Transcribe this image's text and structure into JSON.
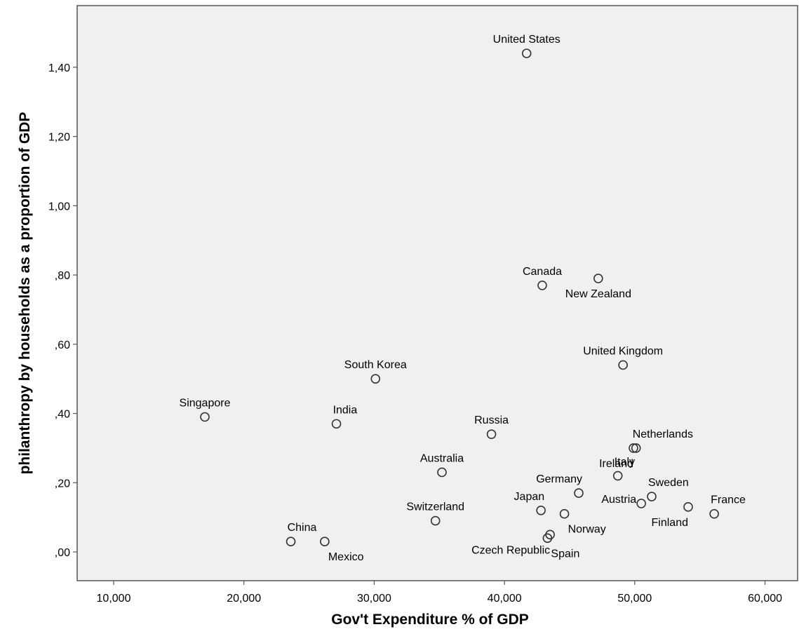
{
  "chart_data": {
    "type": "scatter",
    "title": "",
    "xlabel": "Gov't Expenditure % of GDP",
    "ylabel": "philanthropy by households as a proportion of GDP",
    "xlim": [
      7.2,
      62.5
    ],
    "ylim": [
      -0.083,
      1.578
    ],
    "x_ticks": [
      10,
      20,
      30,
      40,
      50,
      60
    ],
    "x_tick_labels": [
      "10,000",
      "20,000",
      "30,000",
      "40,000",
      "50,000",
      "60,000"
    ],
    "y_ticks": [
      0.0,
      0.2,
      0.4,
      0.6,
      0.8,
      1.0,
      1.2,
      1.4
    ],
    "y_tick_labels": [
      ",00",
      ",20",
      ",40",
      ",60",
      ",80",
      "1,00",
      "1,20",
      "1,40"
    ],
    "grid": false,
    "legend": "none",
    "colors": {
      "plot_background": "#f0f0f0",
      "marker_stroke": "#333333",
      "axis": "#555555"
    },
    "points": [
      {
        "label": "United States",
        "x": 41.7,
        "y": 1.44,
        "label_pos": "above"
      },
      {
        "label": "Canada",
        "x": 42.9,
        "y": 0.77,
        "label_pos": "above"
      },
      {
        "label": "New Zealand",
        "x": 47.2,
        "y": 0.79,
        "label_pos": "below"
      },
      {
        "label": "United Kingdom",
        "x": 49.1,
        "y": 0.54,
        "label_pos": "above"
      },
      {
        "label": "South Korea",
        "x": 30.1,
        "y": 0.5,
        "label_pos": "above"
      },
      {
        "label": "Singapore",
        "x": 17.0,
        "y": 0.39,
        "label_pos": "above"
      },
      {
        "label": "India",
        "x": 27.1,
        "y": 0.37,
        "label_pos": "above-right"
      },
      {
        "label": "Russia",
        "x": 39.0,
        "y": 0.34,
        "label_pos": "above"
      },
      {
        "label": "Netherlands",
        "x": 50.1,
        "y": 0.3,
        "label_pos": "above-right"
      },
      {
        "label": "Ireland",
        "x": 49.9,
        "y": 0.3,
        "label_pos": "below-left"
      },
      {
        "label": "Australia",
        "x": 35.2,
        "y": 0.23,
        "label_pos": "above"
      },
      {
        "label": "Italy",
        "x": 48.7,
        "y": 0.22,
        "label_pos": "above-right"
      },
      {
        "label": "Germany",
        "x": 45.7,
        "y": 0.17,
        "label_pos": "above-left"
      },
      {
        "label": "Austria",
        "x": 50.5,
        "y": 0.14,
        "label_pos": "left"
      },
      {
        "label": "Sweden",
        "x": 51.3,
        "y": 0.16,
        "label_pos": "above-right"
      },
      {
        "label": "Finland",
        "x": 54.1,
        "y": 0.13,
        "label_pos": "below-left"
      },
      {
        "label": "France",
        "x": 56.1,
        "y": 0.11,
        "label_pos": "above-right"
      },
      {
        "label": "Japan",
        "x": 42.8,
        "y": 0.12,
        "label_pos": "above-left"
      },
      {
        "label": "Norway",
        "x": 44.6,
        "y": 0.11,
        "label_pos": "below-right"
      },
      {
        "label": "Switzerland",
        "x": 34.7,
        "y": 0.09,
        "label_pos": "above"
      },
      {
        "label": "Czech Republic",
        "x": 43.5,
        "y": 0.05,
        "label_pos": "below-left"
      },
      {
        "label": "Spain",
        "x": 43.3,
        "y": 0.04,
        "label_pos": "below-right"
      },
      {
        "label": "China",
        "x": 23.6,
        "y": 0.03,
        "label_pos": "above-right"
      },
      {
        "label": "Mexico",
        "x": 26.2,
        "y": 0.03,
        "label_pos": "below-right"
      }
    ]
  }
}
